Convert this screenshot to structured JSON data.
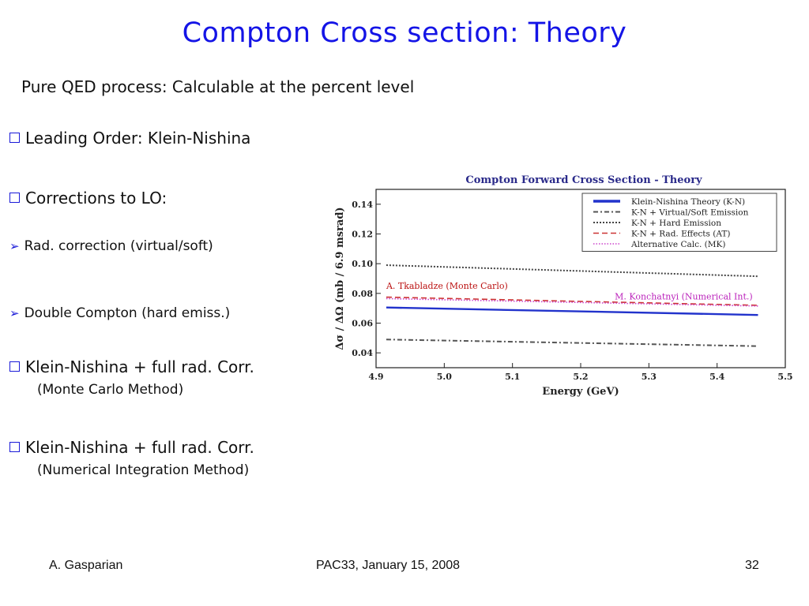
{
  "slide": {
    "title": "Compton Cross section: Theory",
    "subtitle": "Pure QED process: Calculable at the percent level",
    "bullets": {
      "leading_order": "Leading Order: Klein-Nishina",
      "corrections": "Corrections to LO:",
      "rad_correction": "Rad. correction (virtual/soft)",
      "double_compton": "Double Compton (hard emiss.)",
      "kn_mc": "Klein-Nishina + full rad. Corr.",
      "kn_mc_sub": "(Monte Carlo Method)",
      "kn_num": "Klein-Nishina + full rad. Corr.",
      "kn_num_sub": "(Numerical Integration Method)"
    },
    "footer": {
      "author": "A. Gasparian",
      "event": "PAC33, January 15, 2008",
      "page": "32"
    }
  },
  "colors": {
    "title": "#1414e6",
    "bullet_marker": "#1a1ad8",
    "kn": "#2233cc",
    "virtual": "#555555",
    "hard": "#444444",
    "rad_at": "#cc3333",
    "alt_mk": "#cc44cc",
    "annot_mc": "#bb1111",
    "annot_num": "#bb22bb"
  },
  "chart_data": {
    "type": "line",
    "title": "Compton Forward Cross Section - Theory",
    "xlabel": "Energy  (GeV)",
    "ylabel": "Δσ / ΔΩ  (mb / 6.9 msrad)",
    "xlim": [
      4.9,
      5.5
    ],
    "ylim": [
      0.03,
      0.15
    ],
    "xticks": [
      "4.9",
      "5.0",
      "5.1",
      "5.2",
      "5.3",
      "5.4",
      "5.5"
    ],
    "yticks": [
      "0.04",
      "0.06",
      "0.08",
      "0.10",
      "0.12",
      "0.14"
    ],
    "grid": false,
    "legend_position": "top-right",
    "series": [
      {
        "name": "Klein-Nishina Theory (K-N)",
        "style": "solid",
        "x": [
          4.915,
          5.46
        ],
        "y": [
          0.0705,
          0.0655
        ]
      },
      {
        "name": "K-N + Virtual/Soft Emission",
        "style": "dashdot",
        "x": [
          4.915,
          5.46
        ],
        "y": [
          0.049,
          0.0445
        ]
      },
      {
        "name": "K-N + Hard Emission",
        "style": "dotted",
        "x": [
          4.915,
          5.46
        ],
        "y": [
          0.099,
          0.0915
        ]
      },
      {
        "name": "K-N + Rad. Effects (AT)",
        "style": "dashed",
        "x": [
          4.915,
          5.46
        ],
        "y": [
          0.0775,
          0.072
        ]
      },
      {
        "name": "Alternative Calc. (MK)",
        "style": "dotted-fine",
        "x": [
          4.915,
          5.46
        ],
        "y": [
          0.0765,
          0.0715
        ]
      }
    ],
    "annotations": [
      {
        "text": "A. Tkabladze (Monte Carlo)",
        "x": 4.915,
        "y": 0.083
      },
      {
        "text": "M. Konchatnyi (Numerical Int.)",
        "x": 5.25,
        "y": 0.076
      }
    ]
  }
}
